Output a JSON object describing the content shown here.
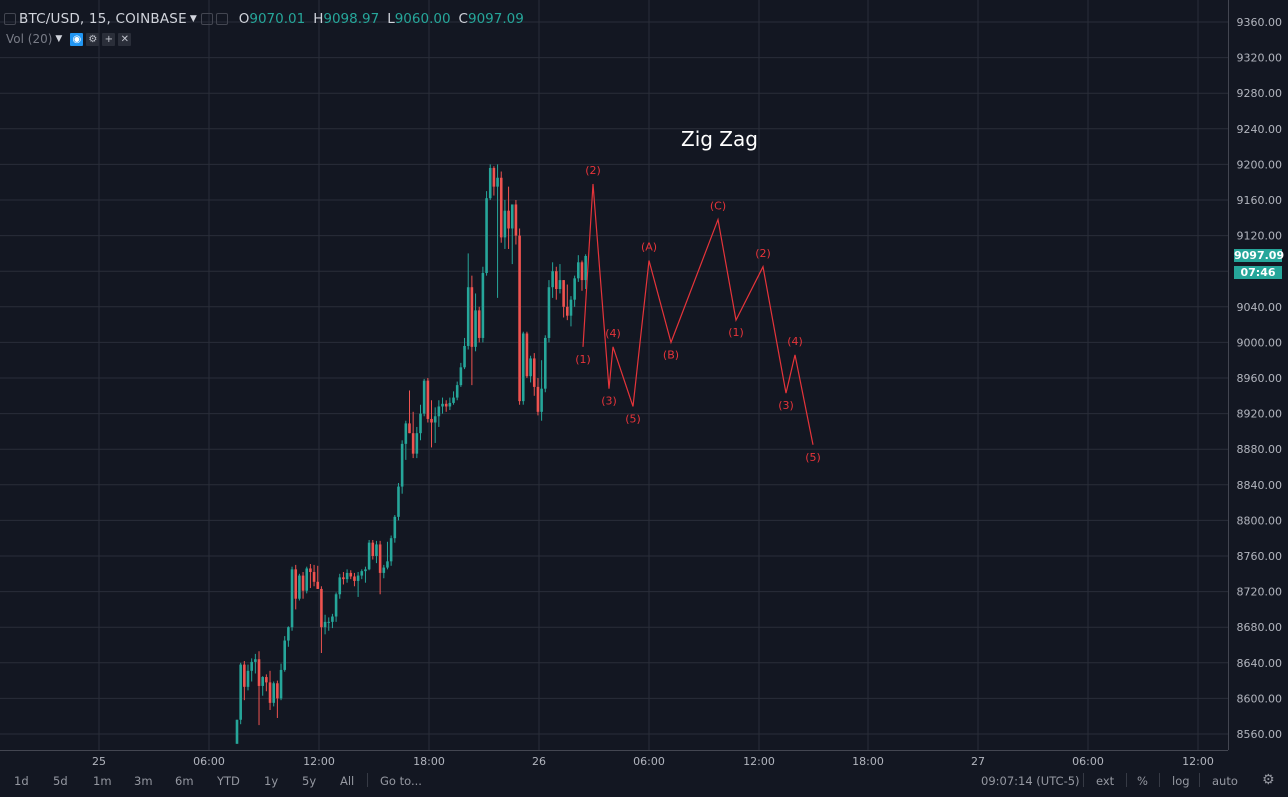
{
  "header": {
    "symbol": "BTC/USD, 15, COINBASE",
    "open_label": "O",
    "open": "9070.01",
    "high_label": "H",
    "high": "9098.97",
    "low_label": "L",
    "low": "9060.00",
    "close_label": "C",
    "close": "9097.09"
  },
  "volume": {
    "label": "Vol (20)"
  },
  "colors": {
    "background": "#131722",
    "grid": "#2a2e39",
    "up": "#26a69a",
    "down": "#ef5350",
    "wave": "#e5343a",
    "tag": "#26a69a"
  },
  "last_price_tag": "9097.09",
  "countdown_tag": "07:46",
  "chart_data": {
    "type": "candlestick",
    "title": "Zig Zag",
    "y_axis": {
      "ticks": [
        "9360.00",
        "9320.00",
        "9280.00",
        "9240.00",
        "9200.00",
        "9160.00",
        "9120.00",
        "9080.00",
        "9040.00",
        "9000.00",
        "8960.00",
        "8920.00",
        "8880.00",
        "8840.00",
        "8800.00",
        "8760.00",
        "8720.00",
        "8680.00",
        "8640.00",
        "8600.00",
        "8560.00"
      ],
      "ylim": [
        8540,
        9380
      ]
    },
    "x_axis": {
      "ticks": [
        "25",
        "06:00",
        "12:00",
        "18:00",
        "26",
        "06:00",
        "12:00",
        "18:00",
        "27",
        "06:00",
        "12:00"
      ]
    },
    "candles": [
      [
        8549,
        8576,
        8549,
        8576
      ],
      [
        8576,
        8640,
        8571,
        8638
      ],
      [
        8638,
        8642,
        8598,
        8613
      ],
      [
        8613,
        8638,
        8609,
        8631
      ],
      [
        8631,
        8645,
        8619,
        8641
      ],
      [
        8641,
        8650,
        8628,
        8644
      ],
      [
        8644,
        8653,
        8570,
        8614
      ],
      [
        8614,
        8625,
        8603,
        8624
      ],
      [
        8624,
        8627,
        8608,
        8618
      ],
      [
        8618,
        8631,
        8587,
        8595
      ],
      [
        8595,
        8619,
        8591,
        8617
      ],
      [
        8617,
        8620,
        8578,
        8600
      ],
      [
        8600,
        8639,
        8598,
        8632
      ],
      [
        8632,
        8670,
        8630,
        8665
      ],
      [
        8665,
        8681,
        8658,
        8680
      ],
      [
        8680,
        8748,
        8676,
        8745
      ],
      [
        8745,
        8750,
        8700,
        8712
      ],
      [
        8712,
        8740,
        8710,
        8738
      ],
      [
        8738,
        8742,
        8712,
        8721
      ],
      [
        8721,
        8748,
        8718,
        8746
      ],
      [
        8746,
        8751,
        8724,
        8742
      ],
      [
        8742,
        8750,
        8726,
        8731
      ],
      [
        8731,
        8749,
        8723,
        8723
      ],
      [
        8723,
        8726,
        8651,
        8680
      ],
      [
        8680,
        8694,
        8672,
        8686
      ],
      [
        8686,
        8691,
        8676,
        8686
      ],
      [
        8686,
        8695,
        8679,
        8692
      ],
      [
        8692,
        8719,
        8686,
        8717
      ],
      [
        8717,
        8740,
        8712,
        8736
      ],
      [
        8736,
        8742,
        8728,
        8734
      ],
      [
        8734,
        8745,
        8730,
        8741
      ],
      [
        8741,
        8744,
        8734,
        8737
      ],
      [
        8737,
        8741,
        8726,
        8732
      ],
      [
        8732,
        8742,
        8714,
        8738
      ],
      [
        8738,
        8745,
        8734,
        8743
      ],
      [
        8743,
        8748,
        8730,
        8745
      ],
      [
        8745,
        8778,
        8744,
        8775
      ],
      [
        8775,
        8778,
        8756,
        8760
      ],
      [
        8760,
        8777,
        8752,
        8773
      ],
      [
        8773,
        8777,
        8717,
        8741
      ],
      [
        8741,
        8750,
        8735,
        8747
      ],
      [
        8747,
        8776,
        8745,
        8754
      ],
      [
        8754,
        8783,
        8749,
        8780
      ],
      [
        8780,
        8806,
        8775,
        8804
      ],
      [
        8804,
        8842,
        8800,
        8838
      ],
      [
        8838,
        8890,
        8830,
        8886
      ],
      [
        8886,
        8912,
        8868,
        8909
      ],
      [
        8909,
        8946,
        8898,
        8898
      ],
      [
        8898,
        8922,
        8870,
        8875
      ],
      [
        8875,
        8905,
        8870,
        8898
      ],
      [
        8898,
        8930,
        8890,
        8920
      ],
      [
        8920,
        8959,
        8917,
        8957
      ],
      [
        8957,
        8960,
        8910,
        8914
      ],
      [
        8914,
        8935,
        8882,
        8910
      ],
      [
        8910,
        8927,
        8887,
        8917
      ],
      [
        8917,
        8935,
        8905,
        8928
      ],
      [
        8928,
        8938,
        8920,
        8931
      ],
      [
        8931,
        8935,
        8922,
        8928
      ],
      [
        8928,
        8938,
        8924,
        8932
      ],
      [
        8932,
        8945,
        8930,
        8938
      ],
      [
        8938,
        8956,
        8935,
        8952
      ],
      [
        8952,
        8977,
        8950,
        8972
      ],
      [
        8972,
        9005,
        8970,
        8996
      ],
      [
        8996,
        9100,
        8992,
        9062
      ],
      [
        9062,
        9075,
        8952,
        8995
      ],
      [
        8995,
        9055,
        8990,
        9036
      ],
      [
        9036,
        9040,
        9000,
        9005
      ],
      [
        9005,
        9085,
        9000,
        9078
      ],
      [
        9078,
        9170,
        9075,
        9162
      ],
      [
        9162,
        9200,
        9160,
        9196
      ],
      [
        9196,
        9198,
        9165,
        9175
      ],
      [
        9175,
        9200,
        9050,
        9185
      ],
      [
        9185,
        9192,
        9112,
        9118
      ],
      [
        9118,
        9160,
        9105,
        9148
      ],
      [
        9148,
        9175,
        9105,
        9128
      ],
      [
        9128,
        9152,
        9088,
        9155
      ],
      [
        9155,
        9160,
        9110,
        9120
      ],
      [
        9120,
        9128,
        8930,
        8934
      ],
      [
        8934,
        9012,
        8930,
        9010
      ],
      [
        9010,
        9012,
        8960,
        8962
      ],
      [
        8962,
        8985,
        8955,
        8982
      ],
      [
        8982,
        8988,
        8940,
        8950
      ],
      [
        8950,
        8960,
        8918,
        8922
      ],
      [
        8922,
        8980,
        8912,
        8948
      ],
      [
        8948,
        9008,
        8944,
        9005
      ],
      [
        9005,
        9070,
        9000,
        9062
      ],
      [
        9062,
        9090,
        9050,
        9080
      ],
      [
        9080,
        9085,
        9048,
        9060
      ],
      [
        9060,
        9088,
        9055,
        9070
      ],
      [
        9070,
        9070,
        9028,
        9040
      ],
      [
        9040,
        9065,
        9025,
        9030
      ],
      [
        9030,
        9052,
        9018,
        9048
      ],
      [
        9048,
        9075,
        9040,
        9072
      ],
      [
        9072,
        9098,
        9068,
        9090
      ],
      [
        9090,
        9092,
        9058,
        9070
      ],
      [
        9070,
        9098.97,
        9060,
        9097.09
      ]
    ],
    "wave_points": [
      [
        8995,
        "(1)"
      ],
      [
        9178,
        "(2)"
      ],
      [
        8948,
        "(3)"
      ],
      [
        8995,
        "(4)"
      ],
      [
        8928,
        "(5)"
      ],
      [
        9092,
        "(A)"
      ],
      [
        9000,
        "(B)"
      ],
      [
        9138,
        "(C)"
      ],
      [
        9025,
        "(1)"
      ],
      [
        9085,
        "(2)"
      ],
      [
        8943,
        "(3)"
      ],
      [
        8986,
        "(4)"
      ],
      [
        8885,
        "(5)"
      ]
    ]
  },
  "footer": {
    "timeframes": [
      "1d",
      "5d",
      "1m",
      "3m",
      "6m",
      "YTD",
      "1y",
      "5y",
      "All"
    ],
    "goto": "Go to...",
    "clock": "09:07:14 (UTC-5)",
    "ext": "ext",
    "percent": "%",
    "log": "log",
    "auto": "auto"
  }
}
